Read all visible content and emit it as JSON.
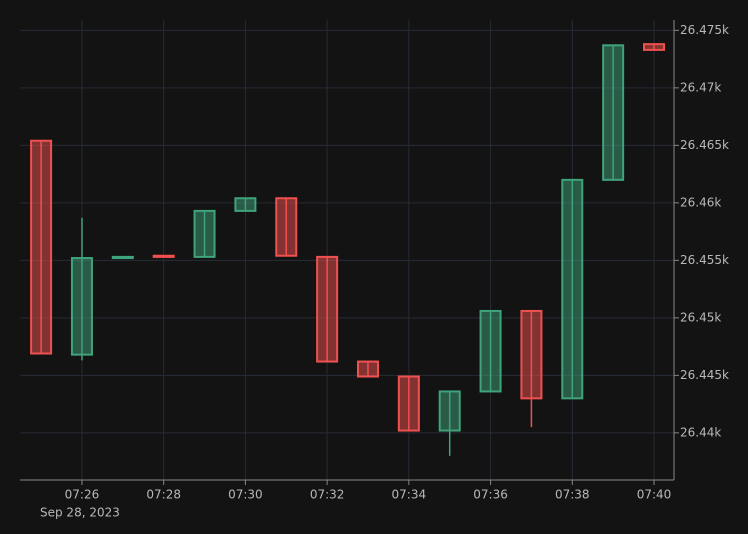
{
  "chart_data": {
    "type": "candlestick",
    "categories": [
      null,
      "07:26",
      null,
      "07:28",
      null,
      "07:30",
      null,
      "07:32",
      null,
      "07:34",
      null,
      "07:36",
      null,
      "07:38",
      null,
      "07:40"
    ],
    "date_label": "Sep 28, 2023",
    "open": [
      26465.4,
      26446.8,
      26455.2,
      26455.4,
      26455.3,
      26459.3,
      26460.4,
      26455.3,
      26446.2,
      26444.9,
      26440.2,
      26443.6,
      26450.6,
      26443.0,
      26462.0,
      26473.8
    ],
    "high": [
      26465.4,
      26458.7,
      26455.3,
      26455.4,
      26459.3,
      26460.4,
      26460.4,
      26455.3,
      26446.2,
      26444.9,
      26443.6,
      26450.6,
      26450.6,
      26462.0,
      26473.7,
      26473.8
    ],
    "low": [
      26446.9,
      26446.3,
      26455.2,
      26455.3,
      26455.3,
      26459.3,
      26455.4,
      26446.2,
      26444.9,
      26440.2,
      26438.0,
      26443.6,
      26440.5,
      26443.0,
      26462.0,
      26473.3
    ],
    "close": [
      26446.9,
      26455.2,
      26455.3,
      26455.3,
      26459.3,
      26460.4,
      26455.4,
      26446.2,
      26444.9,
      26440.2,
      26443.6,
      26450.6,
      26443.0,
      26462.0,
      26473.7,
      26473.3
    ],
    "up_color": "#3fa37c",
    "down_color": "#f0514f",
    "ylim": [
      26435.9,
      26475.9
    ],
    "yticks": [
      {
        "value": 26440,
        "label": "26.44k"
      },
      {
        "value": 26445,
        "label": "26.445k"
      },
      {
        "value": 26450,
        "label": "26.45k"
      },
      {
        "value": 26455,
        "label": "26.455k"
      },
      {
        "value": 26460,
        "label": "26.46k"
      },
      {
        "value": 26465,
        "label": "26.465k"
      },
      {
        "value": 26470,
        "label": "26.47k"
      },
      {
        "value": 26475,
        "label": "26.475k"
      }
    ],
    "grid": true,
    "y_axis_side": "right"
  }
}
